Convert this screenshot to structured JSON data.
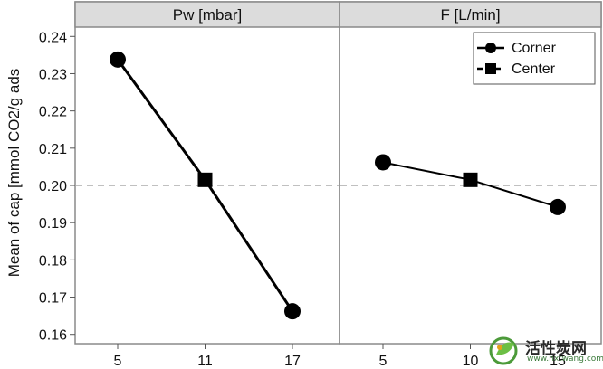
{
  "chart_data": {
    "type": "line",
    "ylabel": "Mean of cap [mmol CO2/g ads",
    "ylim": [
      0.1575,
      0.2425
    ],
    "yticks": [
      "0.16",
      "0.17",
      "0.18",
      "0.19",
      "0.20",
      "0.21",
      "0.22",
      "0.23",
      "0.24"
    ],
    "reference_line": 0.2,
    "grid": false,
    "legend": {
      "position": "top-right",
      "entries": [
        {
          "label": "Corner",
          "marker": "circle",
          "line": "solid"
        },
        {
          "label": "Center",
          "marker": "square",
          "line": "dashed"
        }
      ]
    },
    "panels": [
      {
        "title": "Pw [mbar]",
        "x_ticks": [
          "5",
          "11",
          "17"
        ],
        "corner": {
          "x": [
            5,
            17
          ],
          "y": [
            0.2338,
            0.1662
          ]
        },
        "center": {
          "x": [
            11
          ],
          "y": [
            0.2015
          ]
        }
      },
      {
        "title": "F [L/min]",
        "x_ticks": [
          "5",
          "10",
          "15"
        ],
        "corner": {
          "x": [
            5,
            15
          ],
          "y": [
            0.2062,
            0.1942
          ]
        },
        "center": {
          "x": [
            10
          ],
          "y": [
            0.2015
          ]
        }
      }
    ]
  },
  "watermark": {
    "text": "活性炭网",
    "sub": "www.hxtwang.com"
  }
}
